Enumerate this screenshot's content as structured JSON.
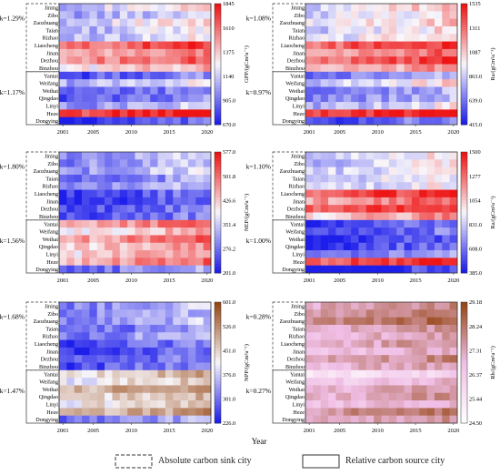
{
  "cities": [
    "Jining",
    "Zibo",
    "Zaozhuang",
    "Taian",
    "Rizhao",
    "Liaocheng",
    "Jinan",
    "Dezhou",
    "Binzhou",
    "Yantai",
    "Weifang",
    "Weihai",
    "Qingdao",
    "Linyi",
    "Heze",
    "Dongying"
  ],
  "x_ticks": [
    "2001",
    "2005",
    "2010",
    "2015",
    "2020"
  ],
  "x_label": "Year",
  "legend": {
    "sink_label": "Absolute carbon sink city",
    "source_label": "Relative carbon source city"
  },
  "chart_data": [
    {
      "type": "heatmap",
      "id": "gpp",
      "ylabel": "GPP/(gCm²a⁻¹)",
      "colorbar_ticks": [
        "1845",
        "1610",
        "1375",
        "1140",
        "905.0",
        "670.0"
      ],
      "vmin": 670,
      "vmax": 1845,
      "k_top": "k=1.29%",
      "k_bottom": "k=1.17%",
      "colormap": "blue-white-red",
      "years_range": [
        2001,
        2020
      ],
      "row_means": [
        1220,
        1110,
        1230,
        1150,
        1160,
        1660,
        1480,
        1600,
        1360,
        880,
        1150,
        880,
        900,
        1060,
        1790,
        760
      ]
    },
    {
      "type": "heatmap",
      "id": "ra",
      "ylabel": "Ra/(gCm²a⁻¹)",
      "colorbar_ticks": [
        "1535",
        "1311",
        "1087",
        "863.0",
        "639.0",
        "415.0"
      ],
      "vmin": 415,
      "vmax": 1535,
      "k_top": "k=1.08%",
      "k_bottom": "k=0.97%",
      "colormap": "blue-white-red",
      "years_range": [
        2001,
        2020
      ],
      "row_means": [
        1000,
        960,
        1000,
        950,
        980,
        1400,
        1260,
        1380,
        1150,
        700,
        950,
        700,
        720,
        880,
        1480,
        620
      ]
    },
    {
      "type": "heatmap",
      "id": "nep",
      "ylabel": "NEP/(gCm²a⁻¹)",
      "colorbar_ticks": [
        "577.0",
        "501.8",
        "426.6",
        "351.4",
        "276.2",
        "201.0"
      ],
      "vmin": 201,
      "vmax": 577,
      "k_top": "k=1.80%",
      "k_bottom": "k=1.56%",
      "colormap": "blue-white-red",
      "years_range": [
        2001,
        2020
      ],
      "row_means": [
        330,
        320,
        330,
        290,
        320,
        250,
        240,
        260,
        260,
        470,
        420,
        480,
        440,
        440,
        480,
        290
      ]
    },
    {
      "type": "heatmap",
      "id": "ra2",
      "ylabel": "Ra/(gCm²a⁻¹)",
      "colorbar_ticks": [
        "1500",
        "1277",
        "1054",
        "831.0",
        "608.0",
        "385.0"
      ],
      "vmin": 385,
      "vmax": 1500,
      "k_top": "k=1.10%",
      "k_bottom": "k=1.00%",
      "colormap": "blue-white-red",
      "years_range": [
        2001,
        2020
      ],
      "row_means": [
        900,
        860,
        900,
        860,
        880,
        1380,
        1240,
        1360,
        1120,
        520,
        560,
        470,
        520,
        600,
        1400,
        440
      ]
    },
    {
      "type": "heatmap",
      "id": "npp",
      "ylabel": "NPP/(gCm²a⁻¹)",
      "colorbar_ticks": [
        "601.0",
        "526.0",
        "451.0",
        "376.0",
        "301.0",
        "226.0"
      ],
      "vmin": 226,
      "vmax": 601,
      "k_top": "k=1.68%",
      "k_bottom": "k=1.47%",
      "colormap": "blue-white-brown",
      "years_range": [
        2001,
        2020
      ],
      "row_means": [
        340,
        330,
        340,
        310,
        330,
        280,
        270,
        290,
        290,
        470,
        440,
        500,
        460,
        450,
        490,
        320
      ]
    },
    {
      "type": "heatmap",
      "id": "rh",
      "ylabel": "Rh/(gCm²a⁻¹)",
      "colorbar_ticks": [
        "29.18",
        "28.24",
        "27.31",
        "26.37",
        "25.44",
        "24.50"
      ],
      "vmin": 24.5,
      "vmax": 29.18,
      "k_top": "k=0.28%",
      "k_bottom": "k=0.27%",
      "colormap": "white-brown",
      "years_range": [
        2001,
        2020
      ],
      "row_means": [
        27.6,
        27.8,
        28.2,
        27.4,
        27.2,
        27.4,
        26.9,
        27.6,
        27.2,
        25.8,
        26.6,
        27.2,
        27.4,
        26.9,
        28.0,
        27.4
      ]
    }
  ]
}
